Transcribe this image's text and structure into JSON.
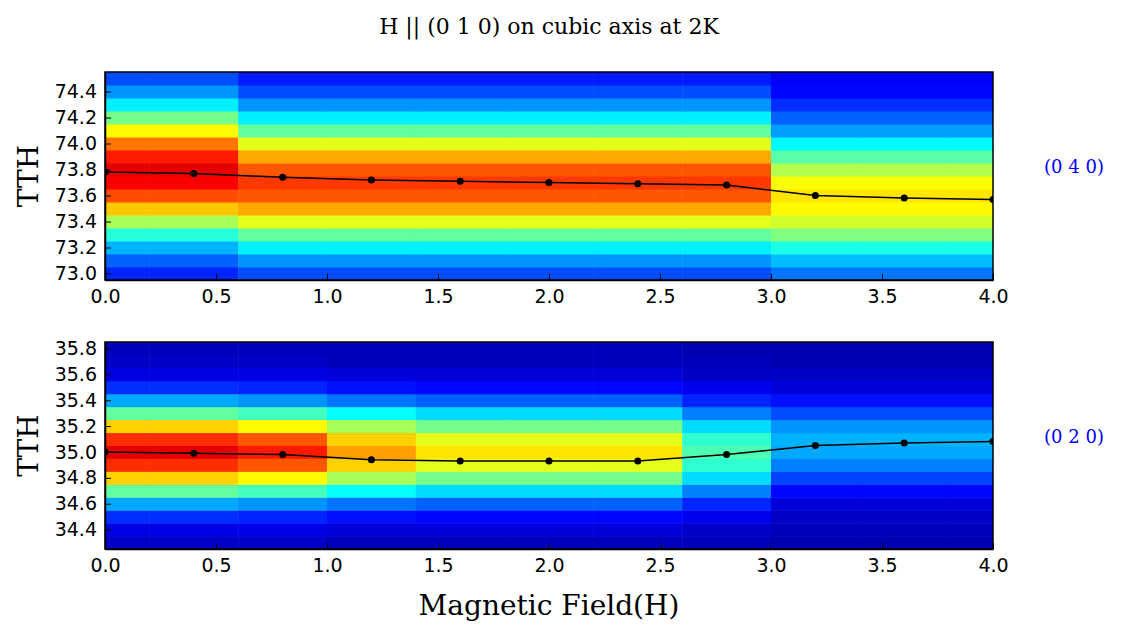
{
  "chart_data": [
    {
      "type": "heatmap",
      "title": "H || (0 1 0) on cubic axis at 2K",
      "ylabel": "TTH",
      "annotation": "(0 4 0)",
      "xlim": [
        0,
        4
      ],
      "ylim": [
        72.95,
        74.55
      ],
      "xticks": [
        {
          "value": 0,
          "label": "0.0"
        },
        0.5,
        {
          "value": 1,
          "label": "1.0"
        },
        1.5,
        {
          "value": 2,
          "label": "2.0"
        },
        2.5,
        {
          "value": 3,
          "label": "3.0"
        },
        3.5,
        {
          "value": 4,
          "label": "4.0"
        }
      ],
      "yticks": [
        {
          "value": 73,
          "label": "73.0"
        },
        73.2,
        73.4,
        73.6,
        73.8,
        {
          "value": 74,
          "label": "74.0"
        },
        74.2,
        74.4
      ],
      "x": [
        0,
        0.4,
        0.8,
        1.2,
        1.6,
        2.0,
        2.4,
        2.8,
        3.2,
        3.6,
        4.0
      ],
      "y": [
        73.0,
        73.1,
        73.2,
        73.3,
        73.4,
        73.5,
        73.6,
        73.7,
        73.8,
        73.9,
        74.0,
        74.1,
        74.2,
        74.3,
        74.4,
        74.5
      ],
      "color_range": [
        0,
        1
      ],
      "cells": [
        [
          0.16,
          0.16,
          0.2,
          0.2,
          0.2,
          0.2,
          0.2,
          0.2,
          0.24,
          0.24,
          0.24
        ],
        [
          0.22,
          0.22,
          0.27,
          0.27,
          0.27,
          0.27,
          0.27,
          0.27,
          0.31,
          0.31,
          0.31
        ],
        [
          0.3,
          0.3,
          0.36,
          0.36,
          0.36,
          0.36,
          0.36,
          0.36,
          0.4,
          0.4,
          0.4
        ],
        [
          0.41,
          0.41,
          0.47,
          0.47,
          0.47,
          0.47,
          0.47,
          0.47,
          0.5,
          0.5,
          0.5
        ],
        [
          0.54,
          0.54,
          0.6,
          0.6,
          0.6,
          0.6,
          0.6,
          0.6,
          0.58,
          0.58,
          0.58
        ],
        [
          0.68,
          0.68,
          0.71,
          0.71,
          0.71,
          0.71,
          0.71,
          0.71,
          0.63,
          0.63,
          0.63
        ],
        [
          0.8,
          0.8,
          0.79,
          0.79,
          0.79,
          0.79,
          0.79,
          0.79,
          0.65,
          0.65,
          0.65
        ],
        [
          0.88,
          0.88,
          0.82,
          0.82,
          0.82,
          0.82,
          0.82,
          0.82,
          0.62,
          0.62,
          0.62
        ],
        [
          0.9,
          0.9,
          0.79,
          0.79,
          0.79,
          0.79,
          0.79,
          0.79,
          0.55,
          0.55,
          0.55
        ],
        [
          0.85,
          0.85,
          0.71,
          0.71,
          0.71,
          0.71,
          0.71,
          0.71,
          0.46,
          0.46,
          0.46
        ],
        [
          0.76,
          0.76,
          0.6,
          0.6,
          0.6,
          0.6,
          0.6,
          0.6,
          0.37,
          0.37,
          0.37
        ],
        [
          0.63,
          0.63,
          0.47,
          0.47,
          0.47,
          0.47,
          0.47,
          0.47,
          0.28,
          0.28,
          0.28
        ],
        [
          0.49,
          0.49,
          0.36,
          0.36,
          0.36,
          0.36,
          0.36,
          0.36,
          0.22,
          0.22,
          0.22
        ],
        [
          0.36,
          0.36,
          0.27,
          0.27,
          0.27,
          0.27,
          0.27,
          0.27,
          0.17,
          0.17,
          0.17
        ],
        [
          0.27,
          0.27,
          0.2,
          0.2,
          0.2,
          0.2,
          0.2,
          0.2,
          0.13,
          0.13,
          0.13
        ],
        [
          0.2,
          0.2,
          0.15,
          0.15,
          0.15,
          0.15,
          0.15,
          0.15,
          0.12,
          0.12,
          0.12
        ]
      ],
      "series": [
        {
          "values": [
            73.78,
            73.77,
            73.74,
            73.72,
            73.71,
            73.7,
            73.69,
            73.68,
            73.6,
            73.58,
            73.57
          ],
          "color": "#000000",
          "marker": "circle"
        }
      ]
    },
    {
      "type": "heatmap",
      "xlabel": "Magnetic Field(H)",
      "ylabel": "TTH",
      "annotation": "(0 2 0)",
      "xlim": [
        0,
        4
      ],
      "ylim": [
        34.25,
        35.85
      ],
      "xticks": [
        {
          "value": 0,
          "label": "0.0"
        },
        0.5,
        {
          "value": 1,
          "label": "1.0"
        },
        1.5,
        {
          "value": 2,
          "label": "2.0"
        },
        2.5,
        {
          "value": 3,
          "label": "3.0"
        },
        3.5,
        {
          "value": 4,
          "label": "4.0"
        }
      ],
      "yticks": [
        34.4,
        34.6,
        34.8,
        {
          "value": 35,
          "label": "35.0"
        },
        35.2,
        35.4,
        35.6,
        35.8
      ],
      "x": [
        0,
        0.4,
        0.8,
        1.2,
        1.6,
        2.0,
        2.4,
        2.8,
        3.2,
        3.6,
        4.0
      ],
      "y": [
        34.3,
        34.4,
        34.5,
        34.6,
        34.7,
        34.8,
        34.9,
        35.0,
        35.1,
        35.2,
        35.3,
        35.4,
        35.5,
        35.6,
        35.7,
        35.8
      ],
      "color_range": [
        0,
        1
      ],
      "cells": [
        [
          0.07,
          0.07,
          0.07,
          0.06,
          0.06,
          0.06,
          0.06,
          0.06,
          0.05,
          0.05,
          0.05
        ],
        [
          0.1,
          0.1,
          0.1,
          0.09,
          0.09,
          0.09,
          0.09,
          0.07,
          0.06,
          0.06,
          0.06
        ],
        [
          0.17,
          0.17,
          0.16,
          0.14,
          0.13,
          0.13,
          0.13,
          0.11,
          0.07,
          0.07,
          0.07
        ],
        [
          0.29,
          0.29,
          0.27,
          0.24,
          0.22,
          0.22,
          0.22,
          0.16,
          0.09,
          0.09,
          0.09
        ],
        [
          0.47,
          0.47,
          0.44,
          0.38,
          0.34,
          0.34,
          0.34,
          0.25,
          0.13,
          0.13,
          0.13
        ],
        [
          0.67,
          0.67,
          0.63,
          0.54,
          0.49,
          0.49,
          0.49,
          0.34,
          0.19,
          0.19,
          0.19
        ],
        [
          0.83,
          0.83,
          0.79,
          0.67,
          0.6,
          0.6,
          0.6,
          0.42,
          0.25,
          0.25,
          0.25
        ],
        [
          0.9,
          0.9,
          0.85,
          0.72,
          0.65,
          0.65,
          0.65,
          0.45,
          0.29,
          0.29,
          0.29
        ],
        [
          0.83,
          0.83,
          0.79,
          0.67,
          0.6,
          0.6,
          0.6,
          0.42,
          0.3,
          0.3,
          0.3
        ],
        [
          0.67,
          0.67,
          0.63,
          0.54,
          0.49,
          0.49,
          0.49,
          0.34,
          0.27,
          0.27,
          0.27
        ],
        [
          0.47,
          0.47,
          0.44,
          0.38,
          0.34,
          0.34,
          0.34,
          0.25,
          0.2,
          0.2,
          0.2
        ],
        [
          0.29,
          0.29,
          0.27,
          0.24,
          0.22,
          0.22,
          0.22,
          0.16,
          0.14,
          0.14,
          0.14
        ],
        [
          0.17,
          0.17,
          0.16,
          0.14,
          0.13,
          0.13,
          0.13,
          0.11,
          0.09,
          0.09,
          0.09
        ],
        [
          0.1,
          0.1,
          0.1,
          0.09,
          0.09,
          0.09,
          0.09,
          0.07,
          0.07,
          0.07,
          0.07
        ],
        [
          0.07,
          0.07,
          0.07,
          0.06,
          0.06,
          0.06,
          0.06,
          0.06,
          0.05,
          0.05,
          0.05
        ],
        [
          0.06,
          0.06,
          0.06,
          0.06,
          0.06,
          0.06,
          0.06,
          0.05,
          0.05,
          0.05,
          0.05
        ]
      ],
      "series": [
        {
          "values": [
            35.0,
            34.99,
            34.98,
            34.94,
            34.93,
            34.93,
            34.93,
            34.98,
            35.05,
            35.07,
            35.08
          ],
          "color": "#000000",
          "marker": "circle"
        }
      ]
    }
  ]
}
